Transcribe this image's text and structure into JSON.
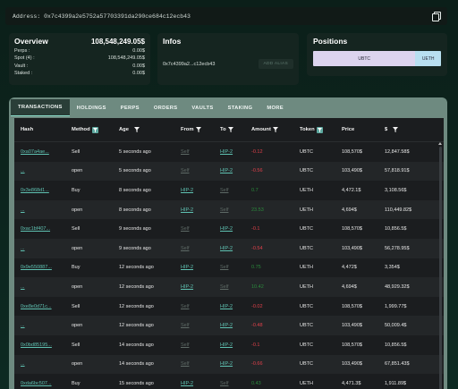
{
  "address_bar": {
    "label": "Address:",
    "value": "0x7c4399a2e5752a57703391da290ce684c12ecb43"
  },
  "overview": {
    "title": "Overview",
    "total": "108,548,249.05$",
    "rows": [
      {
        "label": "Perps :",
        "value": "0.00$"
      },
      {
        "label": "Spot (4) :",
        "value": "108,548,249.05$"
      },
      {
        "label": "Vault :",
        "value": "0.00$"
      },
      {
        "label": "Staked :",
        "value": "0.00$"
      }
    ]
  },
  "infos": {
    "title": "Infos",
    "address_short": "0x7c4399a2...c12ecb43",
    "alias_button": "ADD ALIAS"
  },
  "positions": {
    "title": "Positions",
    "segments": [
      {
        "label": "UBTC",
        "share": 0.8,
        "color": "#dcd4ee"
      },
      {
        "label": "UETH",
        "share": 0.2,
        "color": "#b8dff0"
      }
    ]
  },
  "tabs": [
    "TRANSACTIONS",
    "HOLDINGS",
    "PERPS",
    "ORDERS",
    "VAULTS",
    "STAKING",
    "MORE"
  ],
  "table": {
    "headers": {
      "hash": "Hash",
      "method": "Method",
      "age": "Age",
      "from": "From",
      "to": "To",
      "amount": "Amount",
      "token": "Token",
      "price": "Price",
      "usd": "$"
    },
    "rows": [
      {
        "hash": "0xa07a4ae...",
        "method": "Sell",
        "age": "5 seconds ago",
        "from": "Self",
        "to": "HIP-2",
        "amount": "-0.12",
        "sign": "neg",
        "token": "UBTC",
        "price": "108,570$",
        "usd": "12,847.58$"
      },
      {
        "hash": "...",
        "method": "open",
        "age": "5 seconds ago",
        "from": "Self",
        "to": "HIP-2",
        "amount": "-0.56",
        "sign": "neg",
        "token": "UBTC",
        "price": "103,490$",
        "usd": "57,818.91$"
      },
      {
        "hash": "0x3e868d1...",
        "method": "Buy",
        "age": "8 seconds ago",
        "from": "HIP-2",
        "to": "Self",
        "amount": "0.7",
        "sign": "pos",
        "token": "UETH",
        "price": "4,472.1$",
        "usd": "3,108.56$"
      },
      {
        "hash": "...",
        "method": "open",
        "age": "8 seconds ago",
        "from": "HIP-2",
        "to": "Self",
        "amount": "23.53",
        "sign": "pos",
        "token": "UETH",
        "price": "4,694$",
        "usd": "110,449.82$"
      },
      {
        "hash": "0xac1bf407...",
        "method": "Sell",
        "age": "9 seconds ago",
        "from": "Self",
        "to": "HIP-2",
        "amount": "-0.1",
        "sign": "neg",
        "token": "UBTC",
        "price": "108,570$",
        "usd": "10,856.5$"
      },
      {
        "hash": "...",
        "method": "open",
        "age": "9 seconds ago",
        "from": "Self",
        "to": "HIP-2",
        "amount": "-0.54",
        "sign": "neg",
        "token": "UBTC",
        "price": "103,490$",
        "usd": "56,278.95$"
      },
      {
        "hash": "0x9e550887...",
        "method": "Buy",
        "age": "12 seconds ago",
        "from": "HIP-2",
        "to": "Self",
        "amount": "0.75",
        "sign": "pos",
        "token": "UETH",
        "price": "4,472$",
        "usd": "3,354$"
      },
      {
        "hash": "...",
        "method": "open",
        "age": "12 seconds ago",
        "from": "HIP-2",
        "to": "Self",
        "amount": "10.42",
        "sign": "pos",
        "token": "UETH",
        "price": "4,694$",
        "usd": "48,929.32$"
      },
      {
        "hash": "0xe8e0d71c...",
        "method": "Sell",
        "age": "12 seconds ago",
        "from": "Self",
        "to": "HIP-2",
        "amount": "-0.02",
        "sign": "neg",
        "token": "UBTC",
        "price": "108,570$",
        "usd": "1,999.77$"
      },
      {
        "hash": "...",
        "method": "open",
        "age": "12 seconds ago",
        "from": "Self",
        "to": "HIP-2",
        "amount": "-0.48",
        "sign": "neg",
        "token": "UBTC",
        "price": "103,490$",
        "usd": "50,009.4$"
      },
      {
        "hash": "0x0bd85195...",
        "method": "Sell",
        "age": "14 seconds ago",
        "from": "Self",
        "to": "HIP-2",
        "amount": "-0.1",
        "sign": "neg",
        "token": "UBTC",
        "price": "108,570$",
        "usd": "10,856.5$"
      },
      {
        "hash": "...",
        "method": "open",
        "age": "14 seconds ago",
        "from": "Self",
        "to": "HIP-2",
        "amount": "-0.66",
        "sign": "neg",
        "token": "UBTC",
        "price": "103,490$",
        "usd": "67,851.43$"
      },
      {
        "hash": "0xda6bc507...",
        "method": "Buy",
        "age": "15 seconds ago",
        "from": "HIP-2",
        "to": "Self",
        "amount": "0.43",
        "sign": "pos",
        "token": "UETH",
        "price": "4,471.3$",
        "usd": "1,911.89$"
      }
    ]
  }
}
